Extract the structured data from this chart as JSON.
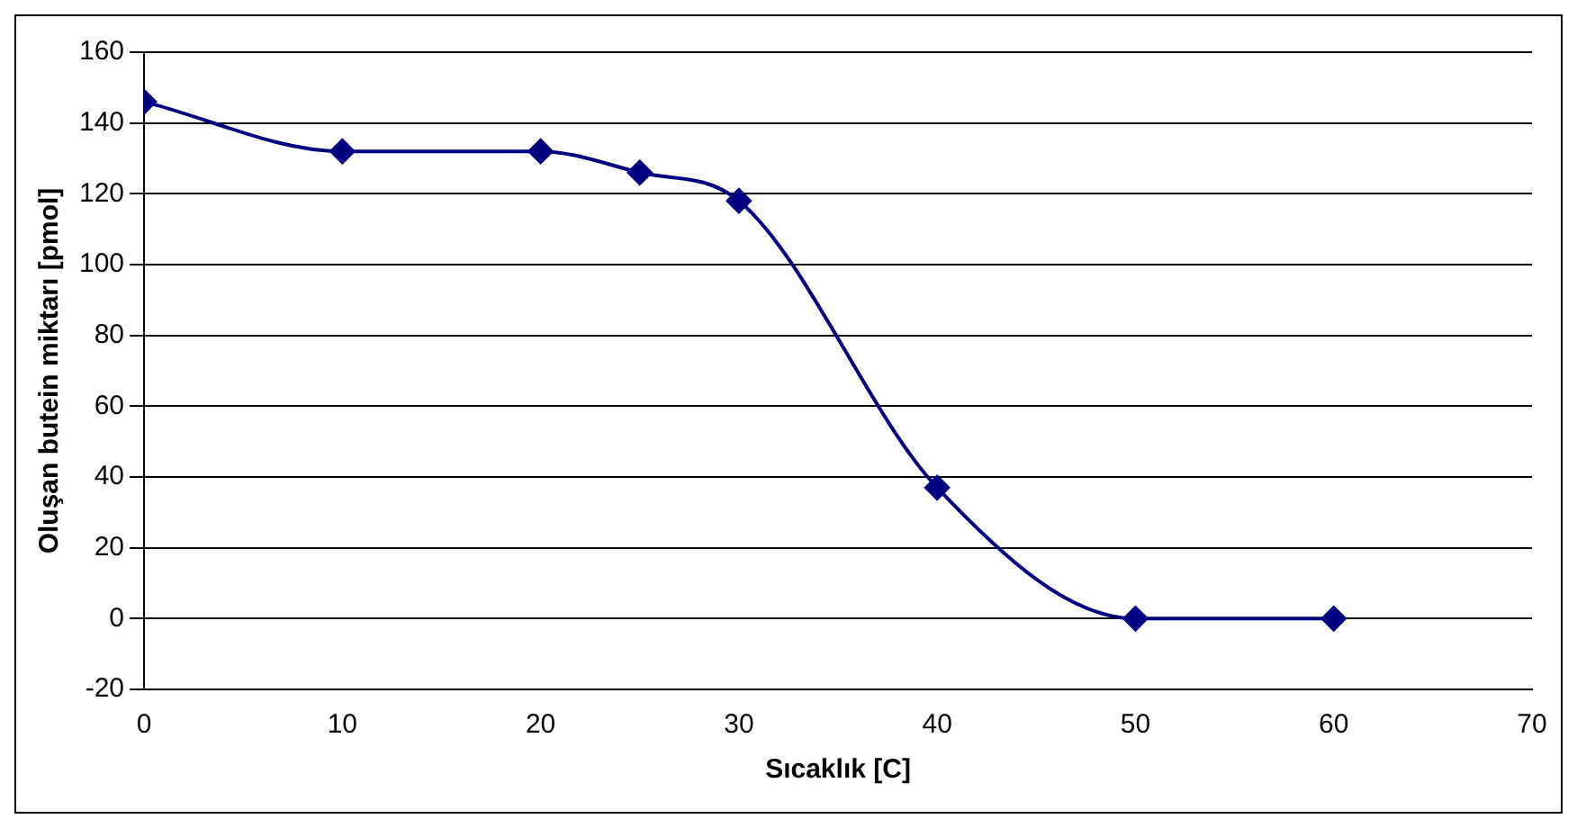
{
  "chart_data": {
    "type": "line",
    "xlabel": "Sıcaklık [C]",
    "ylabel": "Oluşan butein miktarı [pmol]",
    "x": [
      0,
      10,
      20,
      25,
      30,
      40,
      50,
      60
    ],
    "series": [
      {
        "color": "#000080",
        "values": [
          146,
          132,
          132,
          126,
          118,
          37,
          0,
          0
        ]
      }
    ],
    "xlim": [
      0,
      70
    ],
    "xticks": [
      0,
      10,
      20,
      30,
      40,
      50,
      60,
      70
    ],
    "ylim": [
      -20,
      160
    ],
    "yticks": [
      -20,
      0,
      20,
      40,
      60,
      80,
      100,
      120,
      140,
      160
    ],
    "grid": "y",
    "marker": "diamond",
    "line_style": "solid"
  }
}
